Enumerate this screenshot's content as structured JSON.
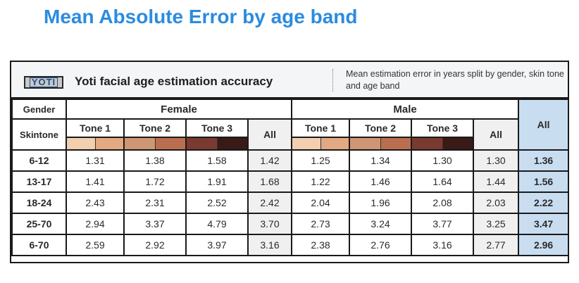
{
  "title": "Mean Absolute Error by age band",
  "card": {
    "logo_text": "YOTI",
    "heading": "Yoti facial age estimation accuracy",
    "description": "Mean estimation error in years split by gender, skin tone and age band"
  },
  "labels": {
    "gender": "Gender",
    "skintone": "Skintone",
    "female": "Female",
    "male": "Male",
    "all": "All",
    "tones": [
      "Tone 1",
      "Tone 2",
      "Tone 3"
    ]
  },
  "colors": {
    "title": "#2b8be0",
    "overall_column": "#c9ddf1",
    "all_column": "#f0f0f0",
    "tone_swatches": [
      [
        "#f2cfae",
        "#e3a982"
      ],
      [
        "#cf9674",
        "#b96f4f"
      ],
      [
        "#7a3a2f",
        "#3a1a16"
      ]
    ]
  },
  "chart_data": {
    "type": "table",
    "title": "Mean Absolute Error by age band",
    "columns": [
      "Female Tone 1",
      "Female Tone 2",
      "Female Tone 3",
      "Female All",
      "Male Tone 1",
      "Male Tone 2",
      "Male Tone 3",
      "Male All",
      "All"
    ],
    "rows": [
      {
        "band": "6-12",
        "values": [
          "1.31",
          "1.38",
          "1.58",
          "1.42",
          "1.25",
          "1.34",
          "1.30",
          "1.30",
          "1.36"
        ]
      },
      {
        "band": "13-17",
        "values": [
          "1.41",
          "1.72",
          "1.91",
          "1.68",
          "1.22",
          "1.46",
          "1.64",
          "1.44",
          "1.56"
        ]
      },
      {
        "band": "18-24",
        "values": [
          "2.43",
          "2.31",
          "2.52",
          "2.42",
          "2.04",
          "1.96",
          "2.08",
          "2.03",
          "2.22"
        ]
      },
      {
        "band": "25-70",
        "values": [
          "2.94",
          "3.37",
          "4.79",
          "3.70",
          "2.73",
          "3.24",
          "3.77",
          "3.25",
          "3.47"
        ]
      },
      {
        "band": "6-70",
        "values": [
          "2.59",
          "2.92",
          "3.97",
          "3.16",
          "2.38",
          "2.76",
          "3.16",
          "2.77",
          "2.96"
        ]
      }
    ]
  }
}
